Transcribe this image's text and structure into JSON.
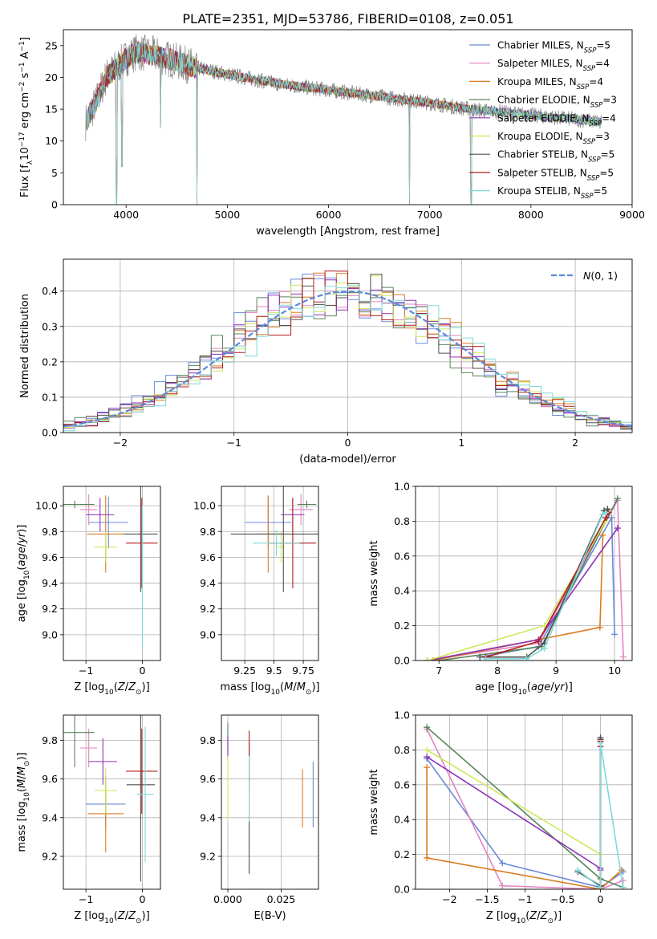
{
  "page_title": "PLATE=2351, MJD=53786, FIBERID=0108, z=0.051",
  "colors": {
    "Chabrier MILES": "#6a8ad8",
    "Salpeter MILES": "#e483c1",
    "Kroupa MILES": "#db7b21",
    "Chabrier ELODIE": "#58845a",
    "Salpeter ELODIE": "#8e31b8",
    "Kroupa ELODIE": "#cde95c",
    "Chabrier STELIB": "#4f4f4f",
    "Salpeter STELIB": "#b21c1c",
    "Kroupa STELIB": "#7edad9",
    "grid": "#b0b0b0",
    "normal_curve": "#5b8ad8"
  },
  "chart_data": [
    {
      "id": "spectrum",
      "type": "line",
      "title": "PLATE=2351, MJD=53786, FIBERID=0108, z=0.051",
      "xlabel": "wavelength [Angstrom, rest frame]",
      "ylabel": "Flux [f_λ10^-17 erg cm^-2 s^-1 A^-1]",
      "xlim": [
        3380,
        9000
      ],
      "ylim": [
        0,
        27.5
      ],
      "xticks": [
        4000,
        5000,
        6000,
        7000,
        8000,
        9000
      ],
      "yticks": [
        0,
        5,
        10,
        15,
        20,
        25
      ],
      "grid": false,
      "legend_position": "top-right",
      "legend": [
        "Chabrier MILES, N_SSP=5",
        "Salpeter MILES, N_SSP=4",
        "Kroupa MILES, N_SSP=4",
        "Chabrier ELODIE, N_SSP=3",
        "Salpeter ELODIE, N_SSP=4",
        "Kroupa ELODIE, N_SSP=3",
        "Chabrier STELIB, N_SSP=5",
        "Salpeter STELIB, N_SSP=5",
        "Kroupa STELIB, N_SSP=5"
      ],
      "continuum": {
        "x": [
          3600,
          3700,
          3800,
          3900,
          4000,
          4100,
          4300,
          4500,
          4700,
          5000,
          5500,
          6000,
          6500,
          7000,
          7400
        ],
        "y": [
          13,
          16,
          20,
          21.5,
          23,
          24,
          23.5,
          22.5,
          21.5,
          20.5,
          19,
          18,
          17,
          16,
          15
        ]
      },
      "deep_features": [
        {
          "x": 3905,
          "y": 0
        },
        {
          "x": 4700,
          "y": 0
        },
        {
          "x": 6800,
          "y": 0
        },
        {
          "x": 7410,
          "y": 0
        },
        {
          "x": 4340,
          "y": 12
        },
        {
          "x": 3960,
          "y": 6
        },
        {
          "x": 8680,
          "y": 12
        }
      ]
    },
    {
      "id": "residual_hist",
      "type": "line",
      "xlabel": "(data-model)/error",
      "ylabel": "Normed distribution",
      "xlim": [
        -2.5,
        2.5
      ],
      "ylim": [
        0,
        0.49
      ],
      "xticks": [
        -2,
        -1,
        0,
        1,
        2
      ],
      "yticks": [
        0.0,
        0.1,
        0.2,
        0.3,
        0.4
      ],
      "grid": true,
      "legend_position": "top-right",
      "legend": [
        "N(0,1)"
      ],
      "normal_curve": {
        "mean": 0,
        "sigma": 1
      }
    },
    {
      "id": "age_vs_Z",
      "type": "scatter",
      "xlabel": "Z [log10(Z/Z⊙)]",
      "ylabel": "age  [log10(age/yr)]",
      "xlim": [
        -1.4,
        0.32
      ],
      "ylim": [
        8.8,
        10.15
      ],
      "xticks": [
        -1,
        0
      ],
      "yticks": [
        9.0,
        9.2,
        9.4,
        9.6,
        9.8,
        10.0
      ],
      "grid": true,
      "points": [
        {
          "model": "Chabrier MILES",
          "x": -0.6,
          "xerr": 0.35,
          "y": 9.87,
          "yerr": 0.2
        },
        {
          "model": "Salpeter MILES",
          "x": -0.95,
          "xerr": 0.15,
          "y": 9.97,
          "yerr": 0.12
        },
        {
          "model": "Kroupa MILES",
          "x": -0.65,
          "xerr": 0.33,
          "y": 9.78,
          "yerr": 0.3
        },
        {
          "model": "Chabrier ELODIE",
          "x": -1.2,
          "xerr": 0.35,
          "y": 10.01,
          "yerr": 0.03
        },
        {
          "model": "Salpeter ELODIE",
          "x": -0.75,
          "xerr": 0.25,
          "y": 9.93,
          "yerr": 0.13
        },
        {
          "model": "Kroupa ELODIE",
          "x": -0.65,
          "xerr": 0.2,
          "y": 9.68,
          "yerr": 0.12
        },
        {
          "model": "Chabrier STELIB",
          "x": -0.03,
          "xerr": 0.3,
          "y": 9.78,
          "yerr": 0.45
        },
        {
          "model": "Salpeter STELIB",
          "x": -0.01,
          "xerr": 0.28,
          "y": 9.71,
          "yerr": 0.35
        },
        {
          "model": "Kroupa STELIB",
          "x": 0.0,
          "xerr": 0.0,
          "y": 9.45,
          "yerr": 0.55
        }
      ]
    },
    {
      "id": "age_vs_mass",
      "type": "scatter",
      "xlabel": "mass [log10(M/M⊙)]",
      "ylabel": "",
      "xlim": [
        9.05,
        9.88
      ],
      "ylim": [
        8.8,
        10.15
      ],
      "xticks": [
        9.25,
        9.5,
        9.75
      ],
      "yticks": [
        9.0,
        9.2,
        9.4,
        9.6,
        9.8,
        10.0
      ],
      "grid": true,
      "points": [
        {
          "model": "Chabrier MILES",
          "x": 9.45,
          "xerr": 0.2,
          "y": 9.87,
          "yerr": 0.2
        },
        {
          "model": "Salpeter MILES",
          "x": 9.73,
          "xerr": 0.1,
          "y": 9.97,
          "yerr": 0.12
        },
        {
          "model": "Kroupa MILES",
          "x": 9.45,
          "xerr": 0.12,
          "y": 9.78,
          "yerr": 0.3
        },
        {
          "model": "Chabrier ELODIE",
          "x": 9.78,
          "xerr": 0.08,
          "y": 10.01,
          "yerr": 0.03
        },
        {
          "model": "Salpeter ELODIE",
          "x": 9.66,
          "xerr": 0.1,
          "y": 9.93,
          "yerr": 0.13
        },
        {
          "model": "Kroupa ELODIE",
          "x": 9.56,
          "xerr": 0.03,
          "y": 9.68,
          "yerr": 0.12
        },
        {
          "model": "Chabrier STELIB",
          "x": 9.58,
          "xerr": 0.45,
          "y": 9.78,
          "yerr": 0.45
        },
        {
          "model": "Salpeter STELIB",
          "x": 9.66,
          "xerr": 0.2,
          "y": 9.71,
          "yerr": 0.35
        },
        {
          "model": "Kroupa STELIB",
          "x": 9.52,
          "xerr": 0.2,
          "y": 9.71,
          "yerr": 0.1
        }
      ]
    },
    {
      "id": "weight_vs_age",
      "type": "line",
      "xlabel": "age  [log10(age/yr)]",
      "ylabel": "mass weight",
      "xlim": [
        6.6,
        10.3
      ],
      "ylim": [
        0,
        1.0
      ],
      "xticks": [
        7,
        8,
        9,
        10
      ],
      "yticks": [
        0.0,
        0.2,
        0.4,
        0.6,
        0.8,
        1.0
      ],
      "grid": true,
      "series": [
        {
          "model": "Chabrier MILES",
          "x": [
            7.7,
            8.7,
            9.95,
            10.0
          ],
          "y": [
            0.02,
            0.08,
            0.82,
            0.15
          ]
        },
        {
          "model": "Salpeter MILES",
          "x": [
            6.8,
            8.7,
            10.05,
            10.15
          ],
          "y": [
            0.0,
            0.1,
            0.92,
            0.02
          ]
        },
        {
          "model": "Kroupa MILES",
          "x": [
            6.9,
            9.75,
            9.8
          ],
          "y": [
            0.0,
            0.19,
            0.72
          ]
        },
        {
          "model": "Chabrier ELODIE",
          "x": [
            7.0,
            8.75,
            10.05
          ],
          "y": [
            0.0,
            0.08,
            0.93
          ]
        },
        {
          "model": "Salpeter ELODIE",
          "x": [
            6.8,
            8.7,
            10.05
          ],
          "y": [
            0.0,
            0.12,
            0.76
          ]
        },
        {
          "model": "Kroupa ELODIE",
          "x": [
            6.8,
            8.8,
            9.85
          ],
          "y": [
            0.0,
            0.2,
            0.8
          ]
        },
        {
          "model": "Chabrier STELIB",
          "x": [
            7.7,
            8.5,
            8.8,
            9.82,
            9.88
          ],
          "y": [
            0.02,
            0.02,
            0.1,
            0.86,
            0.87
          ]
        },
        {
          "model": "Salpeter STELIB",
          "x": [
            7.8,
            8.7,
            9.85,
            9.9
          ],
          "y": [
            0.02,
            0.11,
            0.82,
            0.85
          ]
        },
        {
          "model": "Kroupa STELIB",
          "x": [
            7.8,
            8.5,
            8.8,
            9.8,
            9.85
          ],
          "y": [
            0.01,
            0.01,
            0.07,
            0.84,
            0.85
          ]
        }
      ]
    },
    {
      "id": "mass_vs_Z",
      "type": "scatter",
      "xlabel": "Z [log10(Z/Z⊙)]",
      "ylabel": "mass [log10(M/M⊙)]",
      "xlim": [
        -1.4,
        0.32
      ],
      "ylim": [
        9.03,
        9.93
      ],
      "xticks": [
        -1,
        0
      ],
      "yticks": [
        9.2,
        9.4,
        9.6,
        9.8
      ],
      "grid": true,
      "points": [
        {
          "model": "Chabrier MILES",
          "x": -0.65,
          "xerr": 0.35,
          "y": 9.47,
          "yerr": 0.12
        },
        {
          "model": "Salpeter MILES",
          "x": -0.95,
          "xerr": 0.15,
          "y": 9.76,
          "yerr": 0.1
        },
        {
          "model": "Kroupa MILES",
          "x": -0.65,
          "xerr": 0.32,
          "y": 9.42,
          "yerr": 0.2
        },
        {
          "model": "Chabrier ELODIE",
          "x": -1.2,
          "xerr": 0.35,
          "y": 9.84,
          "yerr": 0.18
        },
        {
          "model": "Salpeter ELODIE",
          "x": -0.7,
          "xerr": 0.25,
          "y": 9.69,
          "yerr": 0.12
        },
        {
          "model": "Kroupa ELODIE",
          "x": -0.65,
          "xerr": 0.2,
          "y": 9.54,
          "yerr": 0.12
        },
        {
          "model": "Chabrier STELIB",
          "x": -0.03,
          "xerr": 0.25,
          "y": 9.57,
          "yerr": 0.5
        },
        {
          "model": "Salpeter STELIB",
          "x": -0.01,
          "xerr": 0.28,
          "y": 9.64,
          "yerr": 0.22
        },
        {
          "model": "Kroupa STELIB",
          "x": 0.05,
          "xerr": 0.15,
          "y": 9.52,
          "yerr": 0.35
        }
      ]
    },
    {
      "id": "mass_vs_ebv",
      "type": "scatter",
      "xlabel": "E(B-V)",
      "ylabel": "",
      "xlim": [
        -0.003,
        0.0425
      ],
      "ylim": [
        9.03,
        9.93
      ],
      "xticks": [
        0.0,
        0.025
      ],
      "xticklabels": [
        "0.000",
        "0.025"
      ],
      "yticks": [
        9.2,
        9.4,
        9.6,
        9.8
      ],
      "grid": true,
      "points": [
        {
          "model": "Chabrier MILES",
          "x": 0.04,
          "xerr": 0,
          "y": 9.52,
          "yerr": 0.17
        },
        {
          "model": "Salpeter MILES",
          "x": 0.0,
          "xerr": 0,
          "y": 9.76,
          "yerr": 0.06
        },
        {
          "model": "Kroupa MILES",
          "x": 0.035,
          "xerr": 0,
          "y": 9.5,
          "yerr": 0.15
        },
        {
          "model": "Chabrier ELODIE",
          "x": 0.0,
          "xerr": 0,
          "y": 9.83,
          "yerr": 0.06
        },
        {
          "model": "Salpeter ELODIE",
          "x": 0.0,
          "xerr": 0,
          "y": 9.76,
          "yerr": 0.06
        },
        {
          "model": "Kroupa ELODIE",
          "x": 0.0,
          "xerr": 0,
          "y": 9.55,
          "yerr": 0.17
        },
        {
          "model": "Chabrier STELIB",
          "x": 0.01,
          "xerr": 0,
          "y": 9.45,
          "yerr": 0.34
        },
        {
          "model": "Salpeter STELIB",
          "x": 0.01,
          "xerr": 0,
          "y": 9.7,
          "yerr": 0.15
        },
        {
          "model": "Kroupa STELIB",
          "x": 0.01,
          "xerr": 0,
          "y": 9.55,
          "yerr": 0.17
        }
      ]
    },
    {
      "id": "weight_vs_Z",
      "type": "line",
      "xlabel": "Z [log10(Z/Z⊙)]",
      "ylabel": "mass weight",
      "xlim": [
        -2.45,
        0.42
      ],
      "ylim": [
        0,
        1.0
      ],
      "xticks": [
        -2.0,
        -1.5,
        -1.0,
        -0.5,
        0.0
      ],
      "yticks": [
        0.0,
        0.2,
        0.4,
        0.6,
        0.8,
        1.0
      ],
      "grid": true,
      "series": [
        {
          "model": "Chabrier MILES",
          "x": [
            -2.3,
            -1.3,
            0.0,
            0.3
          ],
          "y": [
            0.75,
            0.15,
            0.01,
            0.1
          ]
        },
        {
          "model": "Salpeter MILES",
          "x": [
            -2.3,
            -1.3,
            0.0,
            0.3
          ],
          "y": [
            0.92,
            0.02,
            0.0,
            0.05
          ]
        },
        {
          "model": "Kroupa MILES",
          "x": [
            -2.3,
            -2.3,
            0.0,
            0.28
          ],
          "y": [
            0.7,
            0.18,
            0.0,
            0.11
          ]
        },
        {
          "model": "Chabrier ELODIE",
          "x": [
            -2.3,
            0.0,
            0.3
          ],
          "y": [
            0.93,
            0.06,
            0.01
          ]
        },
        {
          "model": "Salpeter ELODIE",
          "x": [
            -2.3,
            0.0,
            0.0
          ],
          "y": [
            0.76,
            0.12,
            0.11
          ]
        },
        {
          "model": "Kroupa ELODIE",
          "x": [
            -2.3,
            0.0,
            0.0
          ],
          "y": [
            0.8,
            0.2,
            0.0
          ]
        },
        {
          "model": "Chabrier STELIB",
          "x": [
            -0.3,
            0.0,
            0.0,
            0.0
          ],
          "y": [
            0.1,
            0.02,
            0.86,
            0.87
          ]
        },
        {
          "model": "Salpeter STELIB",
          "x": [
            0.0,
            0.0,
            0.0
          ],
          "y": [
            0.02,
            0.82,
            0.85
          ]
        },
        {
          "model": "Kroupa STELIB",
          "x": [
            -0.3,
            0.0,
            0.0,
            0.3
          ],
          "y": [
            0.11,
            0.01,
            0.84,
            0.01
          ]
        }
      ]
    }
  ]
}
